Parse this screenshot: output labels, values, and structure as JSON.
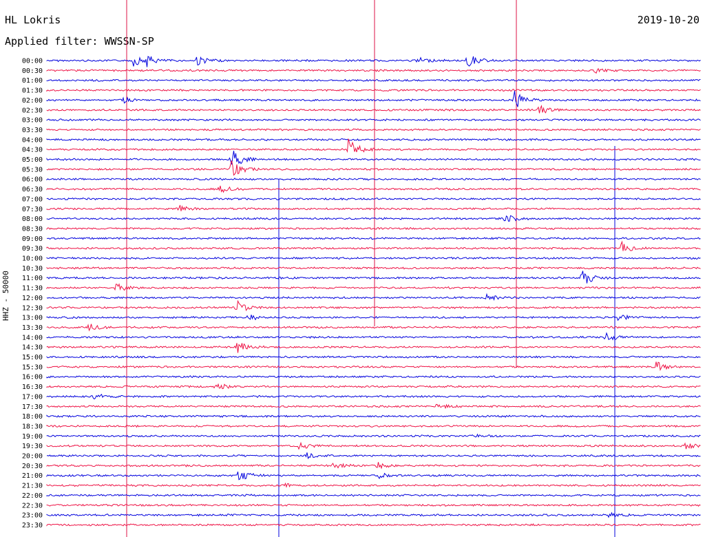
{
  "header": {
    "station": "HL Lokris",
    "filter": "Applied filter: WWSSN-SP",
    "date": "2019-10-20",
    "channel": "HHZ - 50000"
  },
  "colors": {
    "odd_trace": "#0000dd",
    "even_trace": "#ee1144",
    "marker": "#dd1144",
    "marker2": "#0000dd",
    "background": "#ffffff"
  },
  "chart_data": {
    "type": "line",
    "title": "",
    "xlabel": "",
    "ylabel": "HHZ - 50000",
    "rows": [
      "00:00",
      "00:30",
      "01:00",
      "01:30",
      "02:00",
      "02:30",
      "03:00",
      "03:30",
      "04:00",
      "04:30",
      "05:00",
      "05:30",
      "06:00",
      "06:30",
      "07:00",
      "07:30",
      "08:00",
      "08:30",
      "09:00",
      "09:30",
      "10:00",
      "10:30",
      "11:00",
      "11:30",
      "12:00",
      "12:30",
      "13:00",
      "13:30",
      "14:00",
      "14:30",
      "15:00",
      "15:30",
      "16:00",
      "16:30",
      "17:00",
      "17:30",
      "18:00",
      "18:30",
      "19:00",
      "19:30",
      "20:00",
      "20:30",
      "21:00",
      "21:30",
      "22:00",
      "22:30",
      "23:00",
      "23:30"
    ],
    "events": [
      {
        "row": 0,
        "minute": 4.5,
        "amp": 8
      },
      {
        "row": 0,
        "minute": 5.2,
        "amp": 7
      },
      {
        "row": 0,
        "minute": 7.8,
        "amp": 7
      },
      {
        "row": 0,
        "minute": 19.3,
        "amp": 5
      },
      {
        "row": 0,
        "minute": 21.9,
        "amp": 9
      },
      {
        "row": 1,
        "minute": 28.5,
        "amp": 3
      },
      {
        "row": 4,
        "minute": 4.0,
        "amp": 4
      },
      {
        "row": 4,
        "minute": 24.3,
        "amp": 14
      },
      {
        "row": 5,
        "minute": 25.6,
        "amp": 9
      },
      {
        "row": 9,
        "minute": 15.7,
        "amp": 18
      },
      {
        "row": 10,
        "minute": 9.6,
        "amp": 18
      },
      {
        "row": 11,
        "minute": 9.6,
        "amp": 14
      },
      {
        "row": 13,
        "minute": 9.0,
        "amp": 5
      },
      {
        "row": 15,
        "minute": 6.9,
        "amp": 5
      },
      {
        "row": 16,
        "minute": 23.8,
        "amp": 6
      },
      {
        "row": 19,
        "minute": 29.9,
        "amp": 9
      },
      {
        "row": 22,
        "minute": 27.8,
        "amp": 13
      },
      {
        "row": 23,
        "minute": 3.6,
        "amp": 6
      },
      {
        "row": 24,
        "minute": 22.9,
        "amp": 5
      },
      {
        "row": 25,
        "minute": 9.9,
        "amp": 9
      },
      {
        "row": 26,
        "minute": 29.7,
        "amp": 5
      },
      {
        "row": 26,
        "minute": 10.5,
        "amp": 4
      },
      {
        "row": 27,
        "minute": 2.2,
        "amp": 5
      },
      {
        "row": 28,
        "minute": 29.1,
        "amp": 6
      },
      {
        "row": 29,
        "minute": 9.9,
        "amp": 8
      },
      {
        "row": 31,
        "minute": 31.7,
        "amp": 8
      },
      {
        "row": 33,
        "minute": 8.8,
        "amp": 5
      },
      {
        "row": 34,
        "minute": 2.5,
        "amp": 4
      },
      {
        "row": 35,
        "minute": 20.3,
        "amp": 4
      },
      {
        "row": 38,
        "minute": 22.1,
        "amp": 3
      },
      {
        "row": 39,
        "minute": 13.1,
        "amp": 5
      },
      {
        "row": 39,
        "minute": 33.2,
        "amp": 5
      },
      {
        "row": 40,
        "minute": 13.5,
        "amp": 4
      },
      {
        "row": 41,
        "minute": 14.9,
        "amp": 5
      },
      {
        "row": 41,
        "minute": 17.2,
        "amp": 4
      },
      {
        "row": 42,
        "minute": 10.0,
        "amp": 9
      },
      {
        "row": 42,
        "minute": 17.3,
        "amp": 4
      },
      {
        "row": 43,
        "minute": 12.4,
        "amp": 3
      },
      {
        "row": 46,
        "minute": 29.2,
        "amp": 3
      }
    ],
    "grid": false,
    "legend": "none"
  }
}
